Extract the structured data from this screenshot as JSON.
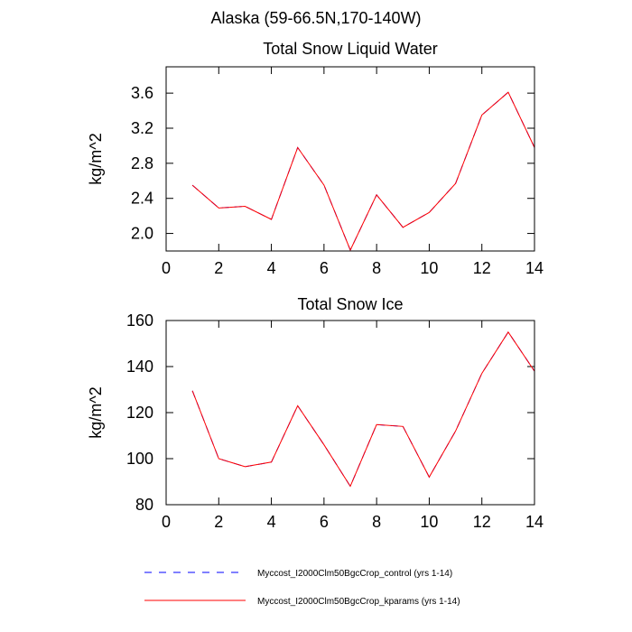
{
  "figure_title": "Alaska (59-66.5N,170-140W)",
  "chart_data": [
    {
      "type": "line",
      "title": "Total Snow Liquid Water",
      "xlabel": "",
      "ylabel": "kg/m^2",
      "xlim": [
        0,
        14
      ],
      "ylim": [
        1.8,
        3.9
      ],
      "xticks": [
        0,
        2,
        4,
        6,
        8,
        10,
        12,
        14
      ],
      "yticks": [
        2.0,
        2.4,
        2.8,
        3.2,
        3.6
      ],
      "ytick_labels": [
        "2.0",
        "2.4",
        "2.8",
        "3.2",
        "3.6"
      ],
      "x": [
        1,
        2,
        3,
        4,
        5,
        6,
        7,
        8,
        9,
        10,
        11,
        12,
        13,
        14
      ],
      "series": [
        {
          "name": "Myccost_I2000Clm50BgcCrop_control (yrs 1-14)",
          "color": "#0000ff",
          "dash": "dashed",
          "values": [
            2.55,
            2.29,
            2.31,
            2.16,
            2.98,
            2.55,
            1.81,
            2.44,
            2.07,
            2.24,
            2.57,
            3.35,
            3.61,
            2.98
          ]
        },
        {
          "name": "Myccost_I2000Clm50BgcCrop_kparams (yrs 1-14)",
          "color": "#ff0000",
          "dash": "solid",
          "values": [
            2.55,
            2.29,
            2.31,
            2.16,
            2.98,
            2.55,
            1.81,
            2.44,
            2.07,
            2.24,
            2.57,
            3.35,
            3.61,
            2.98
          ]
        }
      ]
    },
    {
      "type": "line",
      "title": "Total Snow Ice",
      "xlabel": "",
      "ylabel": "kg/m^2",
      "xlim": [
        0,
        14
      ],
      "ylim": [
        80,
        160
      ],
      "xticks": [
        0,
        2,
        4,
        6,
        8,
        10,
        12,
        14
      ],
      "yticks": [
        80,
        100,
        120,
        140,
        160
      ],
      "ytick_labels": [
        "80",
        "100",
        "120",
        "140",
        "160"
      ],
      "x": [
        1,
        2,
        3,
        4,
        5,
        6,
        7,
        8,
        9,
        10,
        11,
        12,
        13,
        14
      ],
      "series": [
        {
          "name": "Myccost_I2000Clm50BgcCrop_control (yrs 1-14)",
          "color": "#0000ff",
          "dash": "dashed",
          "values": [
            129.5,
            100.0,
            96.5,
            98.5,
            123.0,
            106.0,
            88.0,
            114.8,
            114.0,
            92.0,
            112.0,
            137.0,
            155.0,
            138.0
          ]
        },
        {
          "name": "Myccost_I2000Clm50BgcCrop_kparams (yrs 1-14)",
          "color": "#ff0000",
          "dash": "solid",
          "values": [
            129.5,
            100.0,
            96.5,
            98.5,
            123.0,
            106.0,
            88.0,
            114.8,
            114.0,
            92.0,
            112.0,
            137.0,
            155.0,
            138.0
          ]
        }
      ]
    }
  ],
  "legend": [
    {
      "label": "Myccost_I2000Clm50BgcCrop_control (yrs 1-14)",
      "color": "#0000ff",
      "dash": "dashed"
    },
    {
      "label": "Myccost_I2000Clm50BgcCrop_kparams (yrs 1-14)",
      "color": "#ff0000",
      "dash": "solid"
    }
  ]
}
